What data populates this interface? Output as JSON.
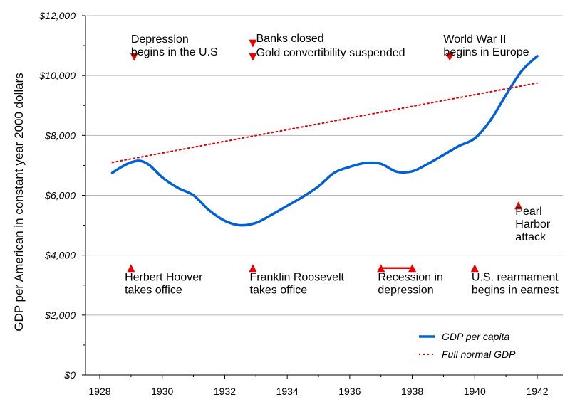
{
  "chart_data": {
    "type": "line",
    "title": "",
    "xlabel": "",
    "ylabel": "GDP per American in constant year 2000 dollars",
    "xlim": [
      1927.8,
      1942.5
    ],
    "ylim": [
      0,
      12000
    ],
    "x_ticks": [
      {
        "value": 1928,
        "label": "1928"
      },
      {
        "value": 1930,
        "label": "1930"
      },
      {
        "value": 1932,
        "label": "1932"
      },
      {
        "value": 1934,
        "label": "1934"
      },
      {
        "value": 1936,
        "label": "1936"
      },
      {
        "value": 1938,
        "label": "1938"
      },
      {
        "value": 1940,
        "label": "1940"
      },
      {
        "value": 1942,
        "label": "1942"
      }
    ],
    "y_ticks": [
      {
        "value": 0,
        "label": "$0"
      },
      {
        "value": 2000,
        "label": "$2,000"
      },
      {
        "value": 4000,
        "label": "$4,000"
      },
      {
        "value": 6000,
        "label": "$6,000"
      },
      {
        "value": 8000,
        "label": "$8,000"
      },
      {
        "value": 10000,
        "label": "$10,000"
      },
      {
        "value": 12000,
        "label": "$12,000"
      }
    ],
    "grid": true,
    "legend_position": "bottom-right",
    "series": [
      {
        "name": "GDP per capita",
        "color": "#0060d8",
        "style": "solid",
        "points": [
          [
            1928.4,
            6750
          ],
          [
            1928.7,
            6950
          ],
          [
            1929.0,
            7100
          ],
          [
            1929.3,
            7150
          ],
          [
            1929.6,
            7000
          ],
          [
            1930.0,
            6600
          ],
          [
            1930.5,
            6250
          ],
          [
            1931.0,
            6000
          ],
          [
            1931.5,
            5500
          ],
          [
            1932.0,
            5150
          ],
          [
            1932.5,
            5000
          ],
          [
            1933.0,
            5080
          ],
          [
            1933.5,
            5350
          ],
          [
            1934.0,
            5650
          ],
          [
            1934.5,
            5950
          ],
          [
            1935.0,
            6300
          ],
          [
            1935.5,
            6750
          ],
          [
            1936.0,
            6950
          ],
          [
            1936.5,
            7080
          ],
          [
            1937.0,
            7050
          ],
          [
            1937.5,
            6790
          ],
          [
            1938.0,
            6800
          ],
          [
            1938.5,
            7050
          ],
          [
            1939.0,
            7350
          ],
          [
            1939.5,
            7650
          ],
          [
            1940.0,
            7900
          ],
          [
            1940.5,
            8500
          ],
          [
            1941.0,
            9350
          ],
          [
            1941.5,
            10150
          ],
          [
            1942.0,
            10650
          ]
        ]
      },
      {
        "name": "Full normal GDP",
        "color": "#e00000",
        "style": "dotted",
        "points": [
          [
            1928.4,
            7100
          ],
          [
            1942.0,
            9750
          ]
        ]
      }
    ],
    "annotations": [
      {
        "lines": [
          "Depression",
          "begins in the U.S"
        ],
        "x": 1929.0,
        "y": 11100,
        "marker": "down",
        "marker_x": 1929.1,
        "marker_y": 10620
      },
      {
        "lines": [
          "Banks closed"
        ],
        "x": 1932.8,
        "y": 11120,
        "marker": "down",
        "marker_x": 1932.9,
        "marker_y": 11070
      },
      {
        "lines": [
          "Gold convertibility suspended"
        ],
        "x": 1932.8,
        "y": 10640,
        "marker": "down",
        "marker_x": 1932.9,
        "marker_y": 10620
      },
      {
        "lines": [
          "World War II",
          "begins in Europe"
        ],
        "x": 1939.0,
        "y": 11100,
        "marker": "down",
        "marker_x": 1939.2,
        "marker_y": 10620
      },
      {
        "lines": [
          "Pearl",
          "Harbor",
          "attack"
        ],
        "x": 1941.3,
        "y": 5350,
        "marker": "up",
        "marker_x": 1941.4,
        "marker_y": 5660
      },
      {
        "lines": [
          "Herbert Hoover",
          "takes office"
        ],
        "x": 1928.8,
        "y": 3150,
        "marker": "up",
        "marker_x": 1929.0,
        "marker_y": 3570
      },
      {
        "lines": [
          "Franklin Roosevelt",
          "takes office"
        ],
        "x": 1932.8,
        "y": 3150,
        "marker": "up",
        "marker_x": 1932.9,
        "marker_y": 3570
      },
      {
        "lines": [
          "Recession in",
          "depression"
        ],
        "x": 1936.9,
        "y": 3150,
        "marker": "span",
        "marker_x": 1937.0,
        "marker_x2": 1938.0,
        "marker_y": 3570
      },
      {
        "lines": [
          "U.S. rearmament",
          "begins in earnest"
        ],
        "x": 1939.9,
        "y": 3150,
        "marker": "up",
        "marker_x": 1940.0,
        "marker_y": 3570
      }
    ]
  }
}
